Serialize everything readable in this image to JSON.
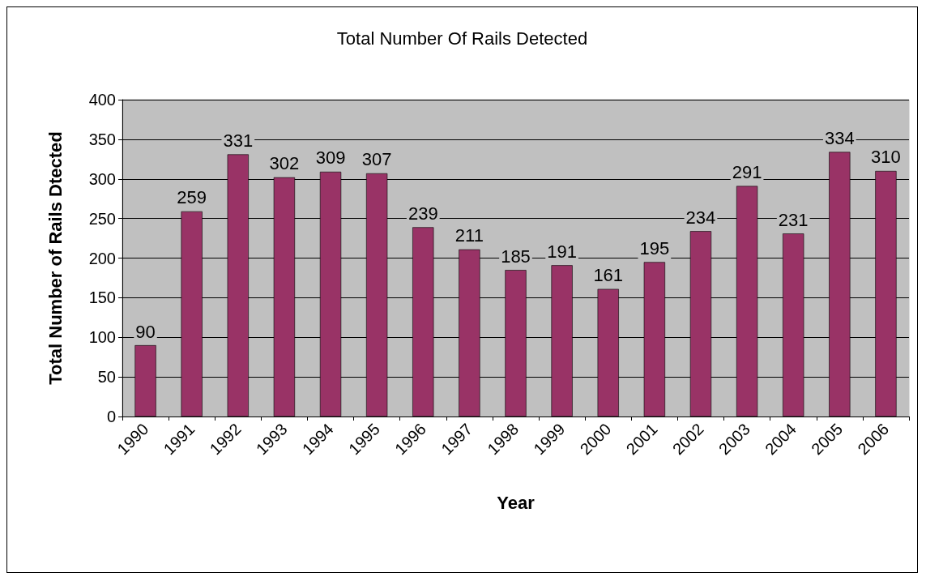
{
  "chart_data": {
    "type": "bar",
    "title": "Total Number Of Rails Detected",
    "xlabel": "Year",
    "ylabel": "Total Number of Rails Dtected",
    "categories": [
      "1990",
      "1991",
      "1992",
      "1993",
      "1994",
      "1995",
      "1996",
      "1997",
      "1998",
      "1999",
      "2000",
      "2001",
      "2002",
      "2003",
      "2004",
      "2005",
      "2006"
    ],
    "values": [
      90,
      259,
      331,
      302,
      309,
      307,
      239,
      211,
      185,
      191,
      161,
      195,
      234,
      291,
      231,
      334,
      310
    ],
    "color": "#993366",
    "ylim": [
      0,
      400
    ],
    "yticks": [
      0,
      50,
      100,
      150,
      200,
      250,
      300,
      350,
      400
    ],
    "grid": "y",
    "data_labels": true
  }
}
